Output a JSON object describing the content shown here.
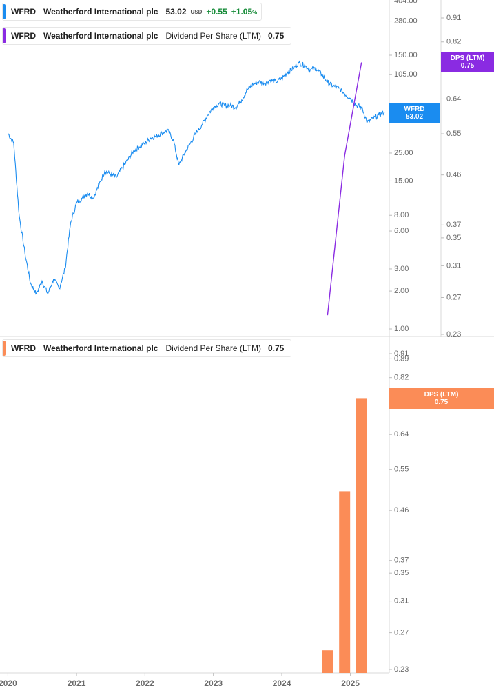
{
  "colors": {
    "price": "#1a8cf0",
    "dps_line": "#8a2be2",
    "dps_bar": "#fb8c57",
    "positive": "#138a36",
    "grid": "#e5e5e5",
    "axis_text": "#6b6b6b"
  },
  "legends": {
    "price": {
      "ticker": "WFRD",
      "name": "Weatherford International plc",
      "value": "53.02",
      "currency": "USD",
      "change": "+0.55",
      "change_pct": "+1.05",
      "pct_symbol": "%"
    },
    "dps_top": {
      "ticker": "WFRD",
      "name": "Weatherford International plc",
      "metric": "Dividend Per Share (LTM)",
      "value": "0.75"
    },
    "dps_bottom": {
      "ticker": "WFRD",
      "name": "Weatherford International plc",
      "metric": "Dividend Per Share (LTM)",
      "value": "0.75"
    }
  },
  "tags": {
    "price": {
      "label": "WFRD",
      "value": "53.02"
    },
    "dps_top": {
      "label": "DPS (LTM)",
      "value": "0.75"
    },
    "dps_bottom": {
      "label": "DPS (LTM)",
      "value": "0.75"
    }
  },
  "chart_data": [
    {
      "type": "line",
      "scale": "log",
      "title": "",
      "series": [
        {
          "name": "WFRD",
          "points": [
            [
              "2020-01-01",
              36
            ],
            [
              "2020-02-01",
              30
            ],
            [
              "2020-03-01",
              8
            ],
            [
              "2020-04-01",
              4
            ],
            [
              "2020-05-01",
              2.3
            ],
            [
              "2020-06-01",
              1.9
            ],
            [
              "2020-07-01",
              2.4
            ],
            [
              "2020-08-01",
              1.9
            ],
            [
              "2020-09-01",
              2.5
            ],
            [
              "2020-10-01",
              2.1
            ],
            [
              "2020-11-01",
              3.0
            ],
            [
              "2020-12-01",
              7
            ],
            [
              "2021-01-01",
              10
            ],
            [
              "2021-02-01",
              11
            ],
            [
              "2021-03-01",
              12
            ],
            [
              "2021-04-01",
              11
            ],
            [
              "2021-05-01",
              14
            ],
            [
              "2021-06-01",
              18
            ],
            [
              "2021-07-01",
              17
            ],
            [
              "2021-08-01",
              16
            ],
            [
              "2021-09-01",
              19
            ],
            [
              "2021-10-01",
              22
            ],
            [
              "2021-11-01",
              26
            ],
            [
              "2021-12-01",
              28
            ],
            [
              "2022-01-01",
              30
            ],
            [
              "2022-02-01",
              33
            ],
            [
              "2022-03-01",
              34
            ],
            [
              "2022-04-01",
              36
            ],
            [
              "2022-05-01",
              38
            ],
            [
              "2022-06-01",
              32
            ],
            [
              "2022-07-01",
              20
            ],
            [
              "2022-08-01",
              25
            ],
            [
              "2022-09-01",
              30
            ],
            [
              "2022-10-01",
              36
            ],
            [
              "2022-11-01",
              42
            ],
            [
              "2022-12-01",
              50
            ],
            [
              "2023-01-01",
              58
            ],
            [
              "2023-02-01",
              62
            ],
            [
              "2023-03-01",
              60
            ],
            [
              "2023-04-01",
              60
            ],
            [
              "2023-05-01",
              58
            ],
            [
              "2023-06-01",
              66
            ],
            [
              "2023-07-01",
              80
            ],
            [
              "2023-08-01",
              88
            ],
            [
              "2023-09-01",
              92
            ],
            [
              "2023-10-01",
              90
            ],
            [
              "2023-11-01",
              95
            ],
            [
              "2023-12-01",
              92
            ],
            [
              "2024-01-01",
              98
            ],
            [
              "2024-02-01",
              110
            ],
            [
              "2024-03-01",
              118
            ],
            [
              "2024-04-01",
              130
            ],
            [
              "2024-05-01",
              125
            ],
            [
              "2024-06-01",
              115
            ],
            [
              "2024-07-01",
              118
            ],
            [
              "2024-08-01",
              105
            ],
            [
              "2024-09-01",
              92
            ],
            [
              "2024-10-01",
              85
            ],
            [
              "2024-11-01",
              82
            ],
            [
              "2024-12-01",
              74
            ],
            [
              "2025-01-01",
              68
            ],
            [
              "2025-02-01",
              60
            ],
            [
              "2025-03-01",
              58
            ],
            [
              "2025-04-01",
              44
            ],
            [
              "2025-05-01",
              47
            ],
            [
              "2025-06-01",
              50
            ],
            [
              "2025-07-01",
              53.02
            ]
          ]
        },
        {
          "name": "DPS (LTM)",
          "axis": "right",
          "points": [
            [
              "2024-09-01",
              0.25
            ],
            [
              "2024-12-01",
              0.5
            ],
            [
              "2025-03-01",
              0.75
            ]
          ]
        }
      ],
      "left_ticks": [
        "404.00",
        "280.00",
        "150.00",
        "105.00",
        "25.00",
        "15.00",
        "8.00",
        "6.00",
        "3.00",
        "2.00",
        "1.00"
      ],
      "right_ticks": [
        "0.91",
        "0.82",
        "0.64",
        "0.55",
        "0.46",
        "0.37",
        "0.35",
        "0.31",
        "0.27",
        "0.23"
      ]
    },
    {
      "type": "bar",
      "scale": "log",
      "title": "",
      "series": [
        {
          "name": "DPS (LTM)",
          "points": [
            [
              "2024-09-01",
              0.25
            ],
            [
              "2024-12-01",
              0.5
            ],
            [
              "2025-03-01",
              0.75
            ]
          ]
        }
      ],
      "ticks": [
        "0.89",
        "0.91",
        "0.82",
        "0.64",
        "0.55",
        "0.46",
        "0.37",
        "0.35",
        "0.31",
        "0.27",
        "0.23"
      ],
      "x_ticks": [
        "2020",
        "2021",
        "2022",
        "2023",
        "2024",
        "2025"
      ]
    }
  ]
}
